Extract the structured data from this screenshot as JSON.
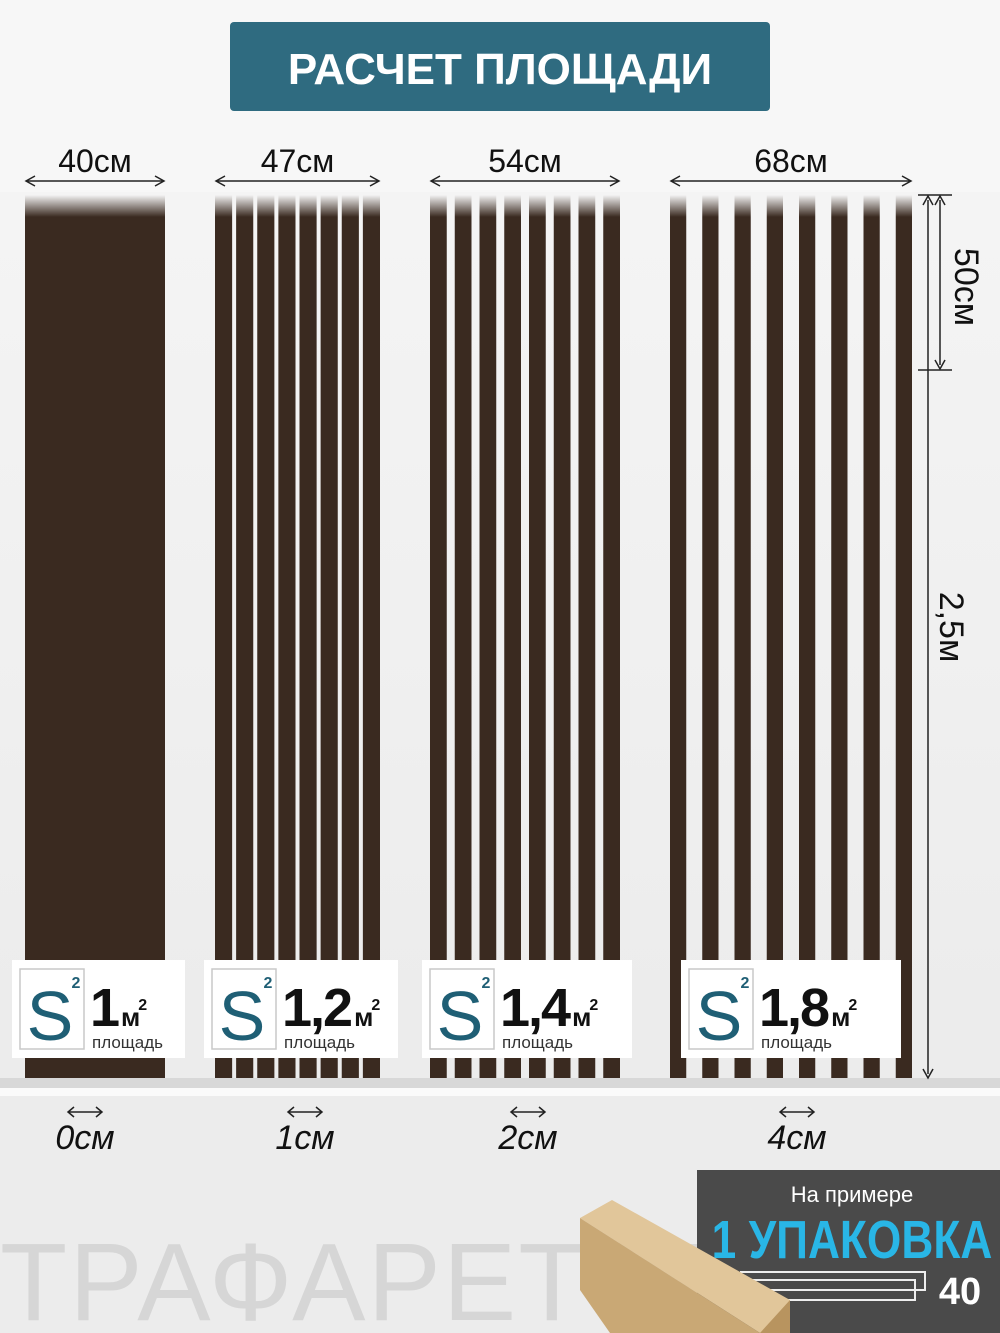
{
  "title": "РАСЧЕТ ПЛОЩАДИ",
  "height_top": "50см",
  "height_total": "2,5м",
  "icon": "S",
  "icon_sup": "2",
  "area_unit": "м",
  "area_sup": "2",
  "area_caption": "площадь",
  "panels": [
    {
      "width": "40см",
      "area": "1",
      "gap": "0см"
    },
    {
      "width": "47см",
      "area": "1,2",
      "gap": "1см"
    },
    {
      "width": "54см",
      "area": "1,4",
      "gap": "2см"
    },
    {
      "width": "68см",
      "area": "1,8",
      "gap": "4см"
    }
  ],
  "package": {
    "note": "На примере",
    "title": "1 УПАКОВКА",
    "count": "40"
  },
  "watermark": "ТРАФАРЕТОВО"
}
